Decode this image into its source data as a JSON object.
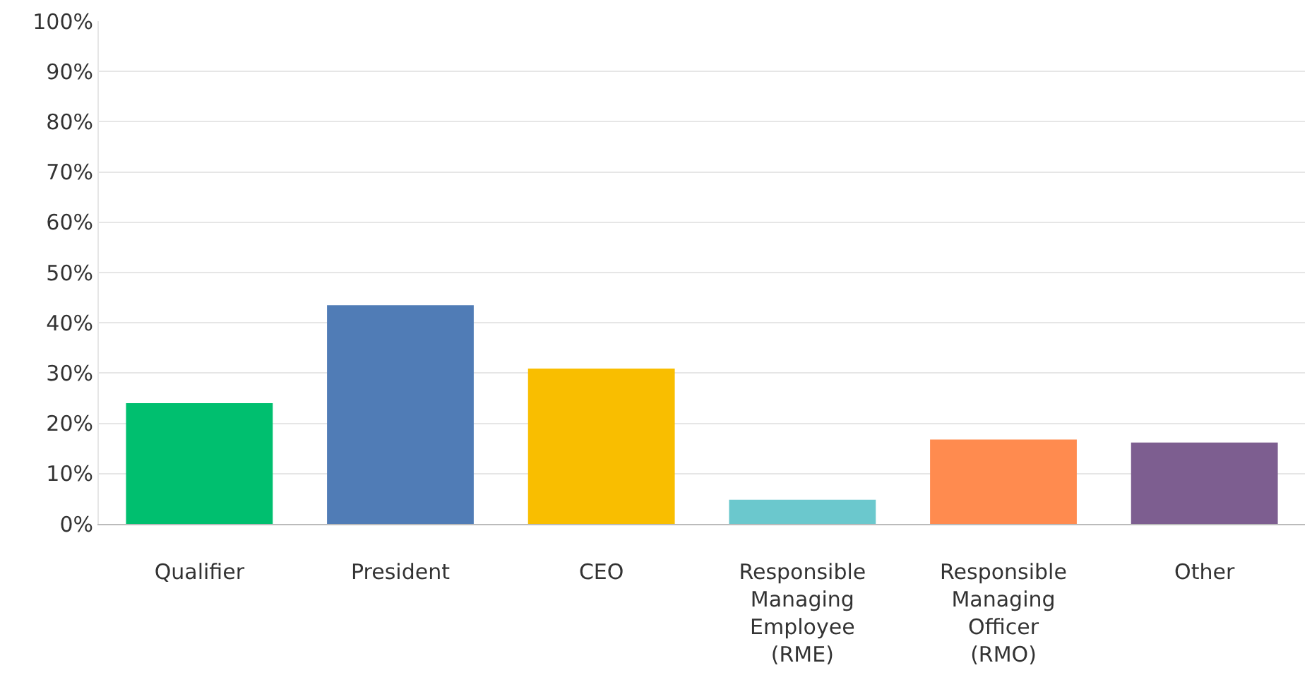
{
  "chart_data": {
    "type": "bar",
    "categories": [
      "Qualifier",
      "President",
      "CEO",
      "Responsible\nManaging\nEmployee\n(RME)",
      "Responsible\nManaging\nOfficer\n(RMO)",
      "Other"
    ],
    "values": [
      24.0,
      43.5,
      30.9,
      4.8,
      16.8,
      16.2
    ],
    "colors": [
      "#00bf6f",
      "#507cb6",
      "#f9be00",
      "#6bc8cd",
      "#ff8b4f",
      "#7d5e90"
    ],
    "ylim": [
      0,
      100
    ],
    "yticks": [
      {
        "value": 0,
        "label": "0%"
      },
      {
        "value": 10,
        "label": "10%"
      },
      {
        "value": 20,
        "label": "20%"
      },
      {
        "value": 30,
        "label": "30%"
      },
      {
        "value": 40,
        "label": "40%"
      },
      {
        "value": 50,
        "label": "50%"
      },
      {
        "value": 60,
        "label": "60%"
      },
      {
        "value": 70,
        "label": "70%"
      },
      {
        "value": 80,
        "label": "80%"
      },
      {
        "value": 90,
        "label": "90%"
      },
      {
        "value": 100,
        "label": "100%"
      }
    ],
    "grid": "y"
  }
}
